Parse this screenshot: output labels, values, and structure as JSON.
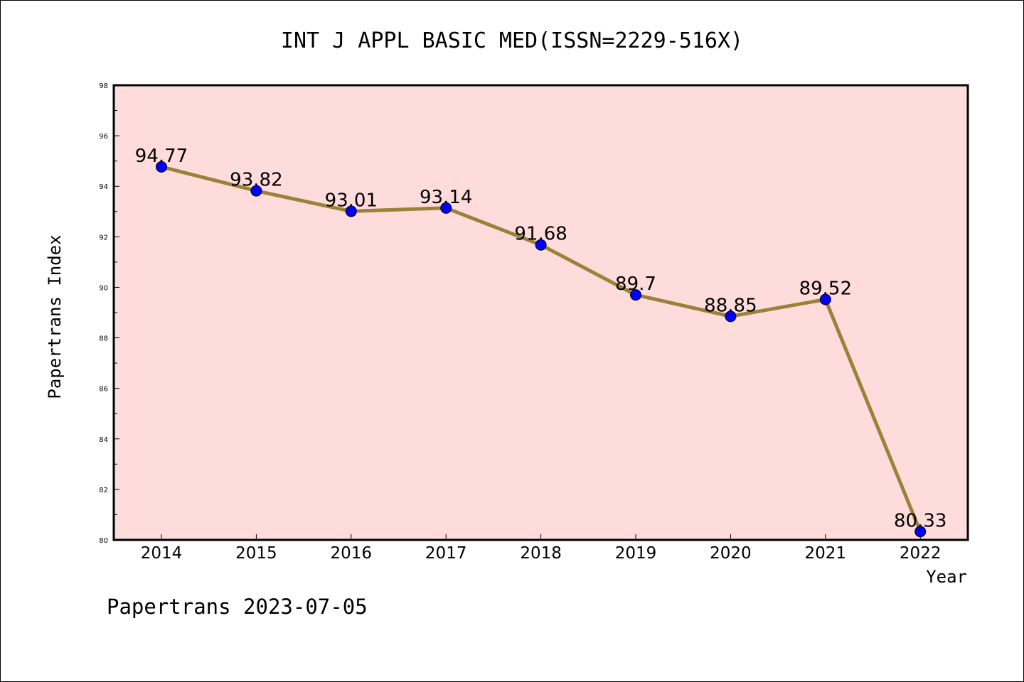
{
  "chart_data": {
    "type": "line",
    "title": "INT J APPL BASIC MED(ISSN=2229-516X)",
    "xlabel": "Year",
    "ylabel": "Papertrans Index",
    "categories": [
      "2014",
      "2015",
      "2016",
      "2017",
      "2018",
      "2019",
      "2020",
      "2021",
      "2022"
    ],
    "values": [
      94.77,
      93.82,
      93.01,
      93.14,
      91.68,
      89.7,
      88.85,
      89.52,
      80.33
    ],
    "data_labels": [
      "94.77",
      "93.82",
      "93.01",
      "93.14",
      "91.68",
      "89.7",
      "88.85",
      "89.52",
      "80.33"
    ],
    "ylim": [
      80,
      98
    ],
    "y_ticks": [
      "80",
      "82",
      "84",
      "86",
      "88",
      "90",
      "92",
      "94",
      "96",
      "98"
    ],
    "grid": false,
    "legend": "none",
    "colors": {
      "plot_background": "#ffdcdc",
      "line": "#9a8238",
      "marker": "#0000ff",
      "axis": "#000000"
    }
  },
  "footer": {
    "text": "Papertrans 2023-07-05"
  }
}
